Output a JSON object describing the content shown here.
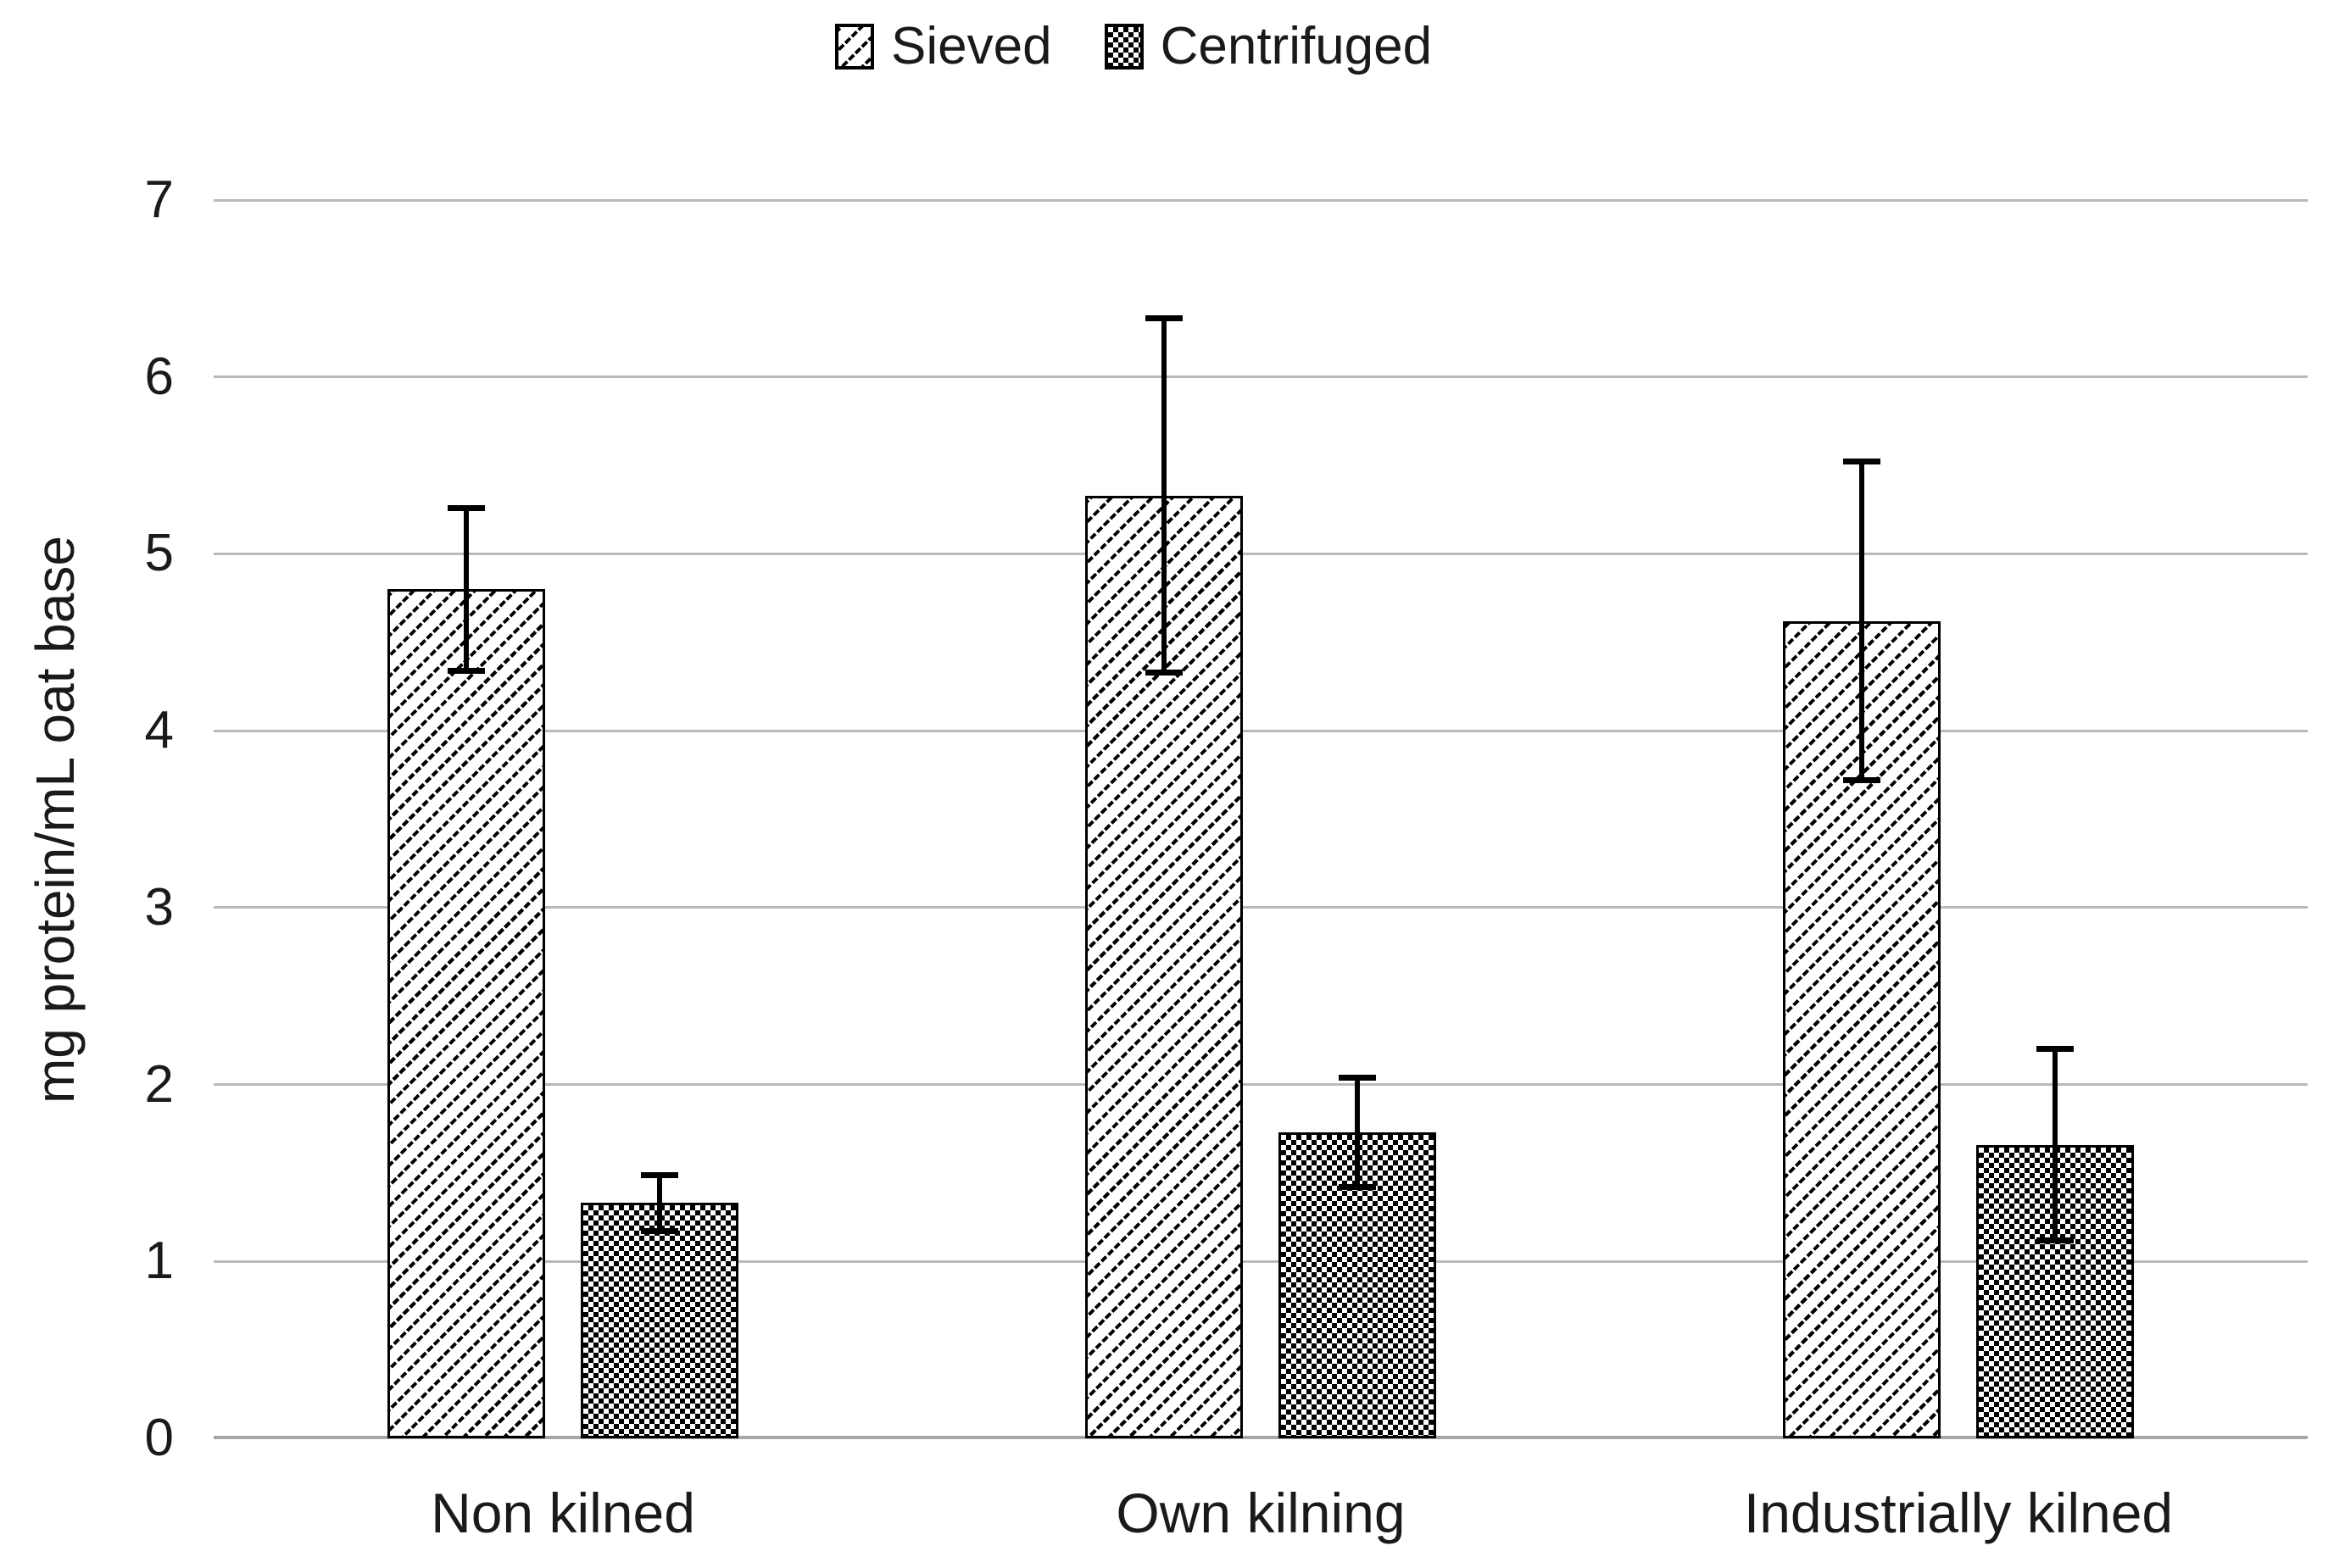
{
  "figure": {
    "background": "#ffffff"
  },
  "chart_data": {
    "type": "bar",
    "categories": [
      "Non kilned",
      "Own kilning",
      "Industrially kilned"
    ],
    "series": [
      {
        "name": "Sieved",
        "pattern": "diagonal-hatch",
        "values": [
          4.8,
          5.33,
          4.62
        ],
        "error_bars": [
          0.46,
          1.0,
          0.9
        ]
      },
      {
        "name": "Centrifuged",
        "pattern": "checker",
        "values": [
          1.33,
          1.73,
          1.66
        ],
        "error_bars": [
          0.16,
          0.31,
          0.54
        ]
      }
    ],
    "xlabel": "",
    "ylabel": "mg protein/mL oat base",
    "ylim": [
      0,
      7
    ],
    "yticks": [
      0,
      1,
      2,
      3,
      4,
      5,
      6,
      7
    ],
    "grid": true,
    "legend_position": "top-center",
    "colors": {
      "bar_fill": "#ffffff",
      "bar_outline": "#000000",
      "gridline": "#b9b9b9",
      "baseline": "#a6a6a6",
      "text": "#1a1a1a",
      "background": "#ffffff"
    }
  }
}
